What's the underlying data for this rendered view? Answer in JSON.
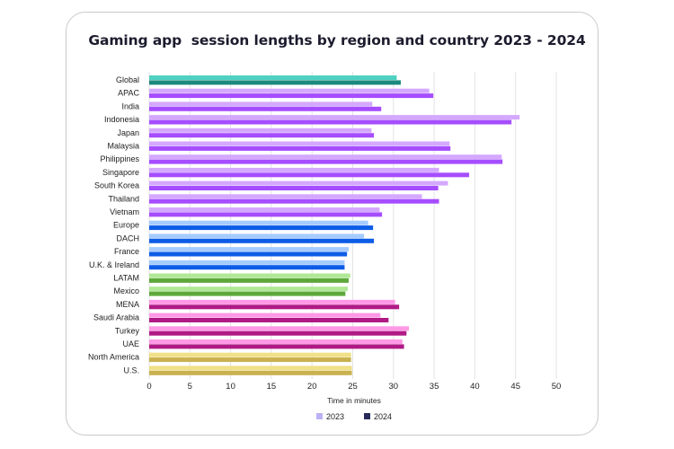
{
  "chart_data": {
    "type": "bar",
    "orientation": "horizontal",
    "title": "Gaming app  session lengths by region and country 2023 - 2024",
    "xlabel": "Time in minutes",
    "ylabel": "",
    "xlim": [
      0,
      50
    ],
    "xticks": [
      0,
      5,
      10,
      15,
      20,
      25,
      30,
      35,
      40,
      45,
      50
    ],
    "grid": true,
    "legend_position": "bottom",
    "categories": [
      "Global",
      "APAC",
      "India",
      "Indonesia",
      "Japan",
      "Malaysia",
      "Philippines",
      "Singapore",
      "South Korea",
      "Thailand",
      "Vietnam",
      "Europe",
      "DACH",
      "France",
      "U.K. & Ireland",
      "LATAM",
      "Mexico",
      "MENA",
      "Saudi Arabia",
      "Turkey",
      "UAE",
      "North America",
      "U.S."
    ],
    "series": [
      {
        "name": "2023",
        "values": [
          30.4,
          34.4,
          27.4,
          45.5,
          27.3,
          36.9,
          43.3,
          35.6,
          36.7,
          33.5,
          28.3,
          26.9,
          26.4,
          24.5,
          24.0,
          24.7,
          24.4,
          30.2,
          28.4,
          31.9,
          31.1,
          24.8,
          24.9
        ]
      },
      {
        "name": "2024",
        "values": [
          30.9,
          34.9,
          28.5,
          44.5,
          27.6,
          37.0,
          43.4,
          39.3,
          35.5,
          35.6,
          28.6,
          27.5,
          27.6,
          24.3,
          24.0,
          24.5,
          24.1,
          30.7,
          29.4,
          31.6,
          31.3,
          24.8,
          24.9
        ]
      }
    ],
    "category_colors": {
      "Global": {
        "2023": "#4fd1c1",
        "2024": "#1a8a7e"
      },
      "Asia": {
        "2023": "#d4a8ff",
        "2024": "#a64dff"
      },
      "Europe": {
        "2023": "#a6ccff",
        "2024": "#0d5ce6"
      },
      "LATAM": {
        "2023": "#b0e896",
        "2024": "#5ea83b"
      },
      "MENA": {
        "2023": "#ff99e6",
        "2024": "#b01a85"
      },
      "North America": {
        "2023": "#f0e089",
        "2024": "#c9b150"
      }
    },
    "category_groups": [
      "Global",
      "Asia",
      "Asia",
      "Asia",
      "Asia",
      "Asia",
      "Asia",
      "Asia",
      "Asia",
      "Asia",
      "Asia",
      "Europe",
      "Europe",
      "Europe",
      "Europe",
      "LATAM",
      "LATAM",
      "MENA",
      "MENA",
      "MENA",
      "MENA",
      "North America",
      "North America"
    ],
    "legend": [
      {
        "name": "2023",
        "color": "#b9b2f5"
      },
      {
        "name": "2024",
        "color": "#2a2a5a"
      }
    ]
  }
}
